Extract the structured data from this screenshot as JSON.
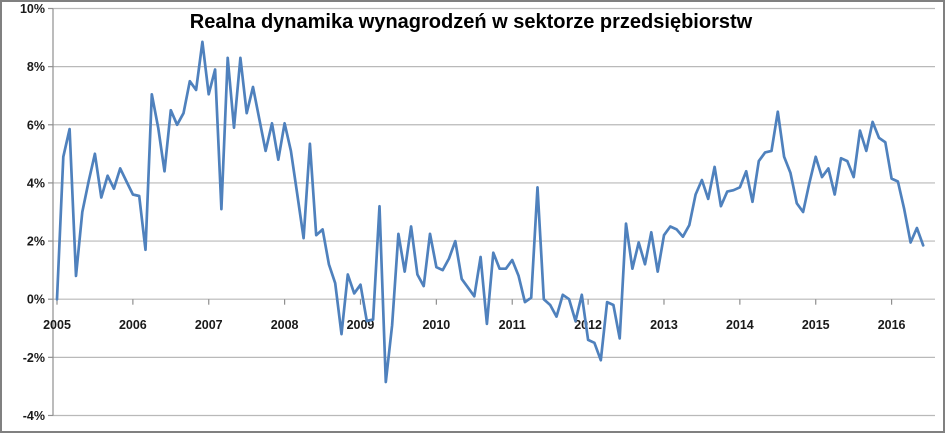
{
  "chart_data": {
    "type": "line",
    "title": "Realna dynamika wynagrodzeń w sektorze przedsiębiorstw",
    "x_unit": "month",
    "x_range": "2005-01 to 2016-06",
    "x_tick_years": [
      "2005",
      "2006",
      "2007",
      "2008",
      "2009",
      "2010",
      "2011",
      "2012",
      "2013",
      "2014",
      "2015",
      "2016"
    ],
    "y_ticks": [
      {
        "value": 10,
        "label": "10%"
      },
      {
        "value": 8,
        "label": "8%"
      },
      {
        "value": 6,
        "label": "6%"
      },
      {
        "value": 4,
        "label": "4%"
      },
      {
        "value": 2,
        "label": "2%"
      },
      {
        "value": 0,
        "label": "0%"
      },
      {
        "value": -2,
        "label": "-2%"
      },
      {
        "value": -4,
        "label": "-4%"
      }
    ],
    "ylim": [
      -4,
      10
    ],
    "grid": true,
    "legend": "none",
    "line_color": "#4f81bd",
    "grid_color": "#b9b9b9",
    "axis_color": "#8f8f8f",
    "label_color": "#1a1a1a",
    "values_pct": [
      0.0,
      4.9,
      5.85,
      0.8,
      3.0,
      4.05,
      5.0,
      3.5,
      4.25,
      3.8,
      4.5,
      4.05,
      3.6,
      3.55,
      1.7,
      7.05,
      5.9,
      4.4,
      6.5,
      6.0,
      6.4,
      7.5,
      7.2,
      8.85,
      7.05,
      7.9,
      3.1,
      8.3,
      5.9,
      8.3,
      6.4,
      7.3,
      6.2,
      5.1,
      6.05,
      4.8,
      6.05,
      5.1,
      3.6,
      2.1,
      5.35,
      2.2,
      2.4,
      1.2,
      0.55,
      -1.2,
      0.85,
      0.2,
      0.5,
      -0.75,
      -0.7,
      3.2,
      -2.85,
      -0.9,
      2.25,
      0.95,
      2.5,
      0.85,
      0.45,
      2.25,
      1.1,
      1.0,
      1.4,
      2.0,
      0.7,
      0.4,
      0.1,
      1.45,
      -0.85,
      1.6,
      1.05,
      1.05,
      1.35,
      0.8,
      -0.1,
      0.05,
      3.85,
      0.0,
      -0.2,
      -0.6,
      0.15,
      0.0,
      -0.75,
      0.15,
      -1.4,
      -1.5,
      -2.1,
      -0.1,
      -0.2,
      -1.35,
      2.6,
      1.05,
      1.95,
      1.2,
      2.3,
      0.95,
      2.2,
      2.5,
      2.4,
      2.15,
      2.55,
      3.6,
      4.1,
      3.45,
      4.55,
      3.2,
      3.7,
      3.75,
      3.85,
      4.4,
      3.35,
      4.75,
      5.05,
      5.1,
      6.45,
      4.9,
      4.35,
      3.3,
      3.0,
      4.0,
      4.9,
      4.2,
      4.5,
      3.6,
      4.85,
      4.75,
      4.2,
      5.8,
      5.1,
      6.1,
      5.55,
      5.4,
      4.15,
      4.05,
      3.1,
      1.95,
      2.45,
      1.85
    ]
  }
}
